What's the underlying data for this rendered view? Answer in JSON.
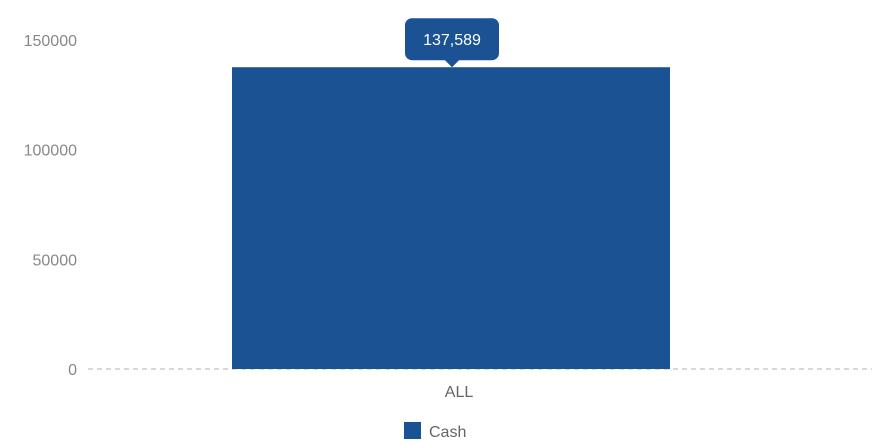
{
  "chart_data": {
    "type": "bar",
    "categories": [
      "ALL"
    ],
    "series": [
      {
        "name": "Cash",
        "values": [
          137589
        ],
        "color": "#1a5294"
      }
    ],
    "data_labels": [
      "137,589"
    ],
    "yticks": [
      "0",
      "50000",
      "100000",
      "150000"
    ],
    "ylim": [
      0,
      150000
    ],
    "grid": false,
    "baseline_style": "dashed",
    "legend_position": "bottom-center",
    "title": "",
    "xlabel": "",
    "ylabel": ""
  }
}
